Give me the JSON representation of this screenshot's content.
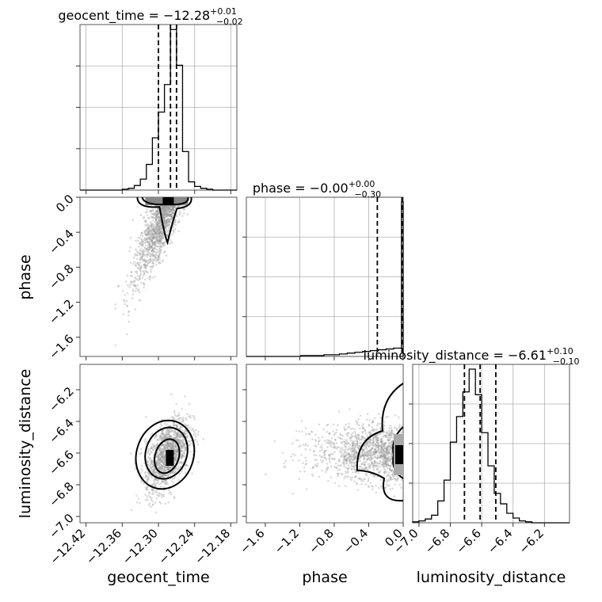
{
  "chart_data": {
    "type": "scatter",
    "figure_kind": "corner",
    "params": [
      {
        "key": "geocent_time",
        "label": "geocent_time",
        "range": [
          -12.43,
          -12.17
        ],
        "ticks": [
          -12.42,
          -12.36,
          -12.3,
          -12.24,
          -12.18
        ],
        "tick_labels": [
          "−12.42",
          "−12.36",
          "−12.30",
          "−12.24",
          "−12.18"
        ],
        "title": "geocent_time = −12.28",
        "title_sup": "+0.01",
        "title_sub": "−0.02",
        "quantiles": [
          -12.3,
          -12.28,
          -12.27
        ],
        "hist_bins": [
          -12.43,
          -12.42,
          -12.41,
          -12.4,
          -12.39,
          -12.38,
          -12.37,
          -12.36,
          -12.35,
          -12.34,
          -12.33,
          -12.32,
          -12.31,
          -12.3,
          -12.29,
          -12.28,
          -12.27,
          -12.26,
          -12.25,
          -12.24,
          -12.23,
          -12.22,
          -12.21,
          -12.2,
          -12.19,
          -12.18,
          -12.17
        ],
        "hist_counts": [
          0,
          0,
          0,
          0,
          0,
          0,
          0,
          1,
          2,
          5,
          12,
          28,
          57,
          85,
          115,
          175,
          136,
          42,
          9,
          4,
          2,
          1,
          0,
          0,
          0,
          0
        ]
      },
      {
        "key": "phase",
        "label": "phase",
        "range": [
          -1.82,
          0.0
        ],
        "ticks": [
          -1.6,
          -1.2,
          -0.8,
          -0.4,
          0.0
        ],
        "tick_labels": [
          "−1.6",
          "−1.2",
          "−0.8",
          "−0.4",
          "0.0"
        ],
        "title": "phase = −0.00",
        "title_sup": "+0.00",
        "title_sub": "−0.30",
        "quantiles": [
          -0.3,
          -0.005,
          0.0
        ],
        "hist_bins": [
          -1.82,
          -1.73,
          -1.64,
          -1.55,
          -1.46,
          -1.37,
          -1.28,
          -1.19,
          -1.1,
          -1.01,
          -0.92,
          -0.83,
          -0.74,
          -0.65,
          -0.56,
          -0.47,
          -0.38,
          -0.29,
          -0.2,
          -0.11,
          -0.02,
          0.0
        ],
        "hist_counts": [
          0,
          0,
          0,
          0,
          0,
          0,
          0,
          1,
          1,
          1,
          2,
          2,
          3,
          4,
          5,
          6,
          7,
          8,
          9,
          10,
          186
        ]
      },
      {
        "key": "luminosity_distance",
        "label": "luminosity_distance",
        "range": [
          -7.04,
          -6.04
        ],
        "ticks": [
          -7.0,
          -6.8,
          -6.6,
          -6.4,
          -6.2
        ],
        "tick_labels": [
          "−7.0",
          "−6.8",
          "−6.6",
          "−6.4",
          "−6.2"
        ],
        "title": "luminosity_distance = −6.61",
        "title_sup": "+0.10",
        "title_sub": "−0.10",
        "quantiles": [
          -6.71,
          -6.61,
          -6.51
        ],
        "hist_bins": [
          -7.04,
          -7.0,
          -6.96,
          -6.92,
          -6.88,
          -6.84,
          -6.8,
          -6.76,
          -6.72,
          -6.68,
          -6.64,
          -6.6,
          -6.56,
          -6.52,
          -6.48,
          -6.44,
          -6.4,
          -6.36,
          -6.32,
          -6.28,
          -6.24,
          -6.2,
          -6.16,
          -6.12,
          -6.08,
          -6.04
        ],
        "hist_counts": [
          1,
          2,
          4,
          8,
          23,
          45,
          85,
          112,
          138,
          162,
          135,
          95,
          60,
          31,
          20,
          10,
          5,
          2,
          1,
          0,
          0,
          0,
          0,
          0,
          0
        ]
      }
    ]
  }
}
